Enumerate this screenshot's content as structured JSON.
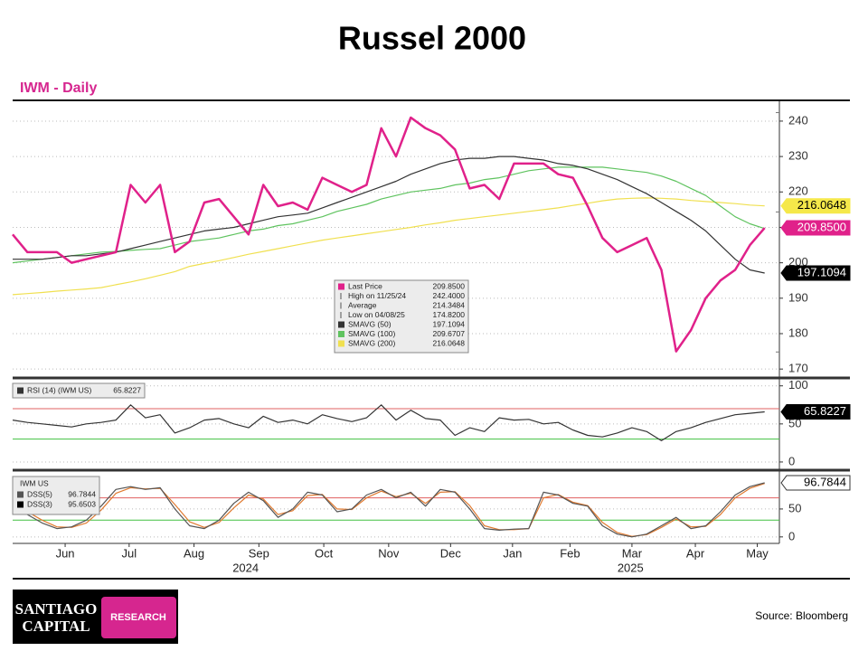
{
  "title": "Russel 2000",
  "subtitle": "IWM - Daily",
  "source": "Source: Bloomberg",
  "logo": {
    "line1": "SANTIAGO",
    "line2": "CAPITAL",
    "tag": "RESEARCH"
  },
  "chart_data": [
    {
      "type": "line",
      "xlim": [
        0,
        52
      ],
      "ylim": [
        168,
        245.6
      ],
      "yticks": [
        170,
        180,
        190,
        200,
        210,
        220,
        230,
        240
      ],
      "grid": true,
      "series": [
        {
          "name": "Last Price",
          "color": "#e0218a",
          "tag_color": "#e0218a",
          "value_label": "209.8500",
          "values": [
            208,
            203,
            203,
            203,
            200,
            201,
            202,
            203,
            222,
            217,
            222,
            203,
            206,
            217,
            218,
            213,
            208,
            222,
            216,
            217,
            215,
            224,
            222,
            220,
            222,
            238,
            230,
            241,
            238,
            236,
            232,
            221,
            222,
            218,
            228,
            228,
            228,
            225,
            224,
            216,
            207,
            203,
            205,
            207,
            198,
            175,
            181,
            190,
            195,
            198,
            205,
            209.85
          ]
        },
        {
          "name": "SMAVG (50)",
          "color": "#333333",
          "tag_color": "#000000",
          "value_label": "197.1094",
          "values": [
            201,
            201,
            201,
            201.5,
            202,
            202,
            202.5,
            203,
            204,
            205,
            206,
            207,
            208,
            209,
            209.5,
            210,
            211,
            212,
            213,
            213.5,
            214,
            215.5,
            217,
            218.5,
            220,
            221.5,
            223,
            225,
            226.5,
            228,
            229,
            229.5,
            229.5,
            230,
            230,
            229.5,
            229,
            228,
            227.5,
            226.5,
            225,
            223.5,
            221.5,
            219.5,
            217,
            214.5,
            212,
            209,
            205,
            201,
            198,
            197.1094
          ]
        },
        {
          "name": "SMAVG (100)",
          "color": "#5fc35f",
          "value_label": "209.6707",
          "values": [
            200,
            200.5,
            201,
            201.5,
            202,
            202.5,
            203,
            203.2,
            203.5,
            203.8,
            204,
            205,
            206,
            206.5,
            207,
            208,
            209,
            209.5,
            210.5,
            211,
            212,
            213,
            214.5,
            215.5,
            216.5,
            218,
            219,
            220,
            220.5,
            221,
            222,
            222.5,
            223.5,
            224,
            225,
            226,
            226.5,
            227,
            227,
            227,
            227,
            226.5,
            226,
            225.5,
            224.5,
            223,
            221,
            219,
            216,
            213,
            211,
            209.6707
          ]
        },
        {
          "name": "SMAVG (200)",
          "color": "#f0e050",
          "tag_color": "#f5e84a",
          "value_label": "216.0648",
          "values": [
            191,
            191.3,
            191.6,
            192,
            192.3,
            192.6,
            193,
            193.8,
            194.6,
            195.5,
            196.5,
            197.5,
            199,
            199.8,
            200.6,
            201.5,
            202.4,
            203.2,
            204,
            204.8,
            205.6,
            206.4,
            207,
            207.6,
            208.2,
            208.8,
            209.4,
            210,
            210.7,
            211.3,
            212,
            212.5,
            213,
            213.5,
            214,
            214.5,
            215,
            215.5,
            216.2,
            216.8,
            217.5,
            218,
            218.2,
            218.3,
            218.2,
            218,
            217.6,
            217.3,
            217,
            216.7,
            216.3,
            216.0648
          ]
        }
      ],
      "stats": [
        {
          "label": "High on 11/25/24",
          "value": 242.4,
          "value_label": "242.4000"
        },
        {
          "label": "Average",
          "value": 214.3484,
          "value_label": "214.3484"
        },
        {
          "label": "Low on 04/08/25",
          "value": 174.82,
          "value_label": "174.8200"
        }
      ]
    },
    {
      "type": "line",
      "xlim": [
        0,
        52
      ],
      "ylim": [
        -6,
        108
      ],
      "yticks": [
        0,
        50,
        100
      ],
      "grid": true,
      "hlines": [
        {
          "value": 70,
          "color": "#e06060"
        },
        {
          "value": 30,
          "color": "#40c040"
        }
      ],
      "series": [
        {
          "name": "RSI (14) (IWM US)",
          "color": "#333333",
          "tag_color": "#000000",
          "value_label": "65.8227",
          "values": [
            55,
            52,
            50,
            48,
            46,
            50,
            52,
            55,
            75,
            58,
            62,
            38,
            45,
            55,
            57,
            50,
            45,
            60,
            52,
            55,
            50,
            62,
            57,
            53,
            58,
            75,
            55,
            68,
            57,
            55,
            35,
            45,
            40,
            58,
            55,
            56,
            50,
            52,
            42,
            35,
            33,
            38,
            45,
            40,
            28,
            40,
            45,
            52,
            57,
            62,
            64,
            65.8227
          ]
        }
      ]
    },
    {
      "type": "line",
      "title": "IWM US",
      "xlim": [
        0,
        52
      ],
      "ylim": [
        -10,
        113
      ],
      "yticks": [
        0,
        50
      ],
      "grid": true,
      "hlines": [
        {
          "value": 70,
          "color": "#e06060"
        },
        {
          "value": 30,
          "color": "#40c040"
        }
      ],
      "xticks": [
        {
          "value": 3.56,
          "label": "Jun"
        },
        {
          "value": 7.9,
          "label": "Jul"
        },
        {
          "value": 12.3,
          "label": "Aug"
        },
        {
          "value": 16.7,
          "label": "Sep"
        },
        {
          "value": 21.1,
          "label": "Oct"
        },
        {
          "value": 25.5,
          "label": "Nov"
        },
        {
          "value": 29.7,
          "label": "Dec"
        },
        {
          "value": 33.9,
          "label": "Jan"
        },
        {
          "value": 37.8,
          "label": "Feb"
        },
        {
          "value": 42.0,
          "label": "Mar"
        },
        {
          "value": 46.3,
          "label": "Apr"
        },
        {
          "value": 50.5,
          "label": "May"
        }
      ],
      "year_ticks": [
        {
          "value": 15.8,
          "label": "2024"
        },
        {
          "value": 41.9,
          "label": "2025"
        }
      ],
      "series": [
        {
          "name": "DSS(5)",
          "color": "#555555",
          "tag_color": "#ffffff",
          "value_label": "96.7844",
          "values": [
            55,
            40,
            25,
            15,
            18,
            30,
            55,
            85,
            90,
            85,
            88,
            50,
            20,
            15,
            30,
            60,
            80,
            65,
            35,
            50,
            80,
            75,
            45,
            50,
            75,
            85,
            70,
            80,
            55,
            85,
            80,
            50,
            15,
            12,
            14,
            15,
            80,
            75,
            60,
            55,
            20,
            5,
            0,
            5,
            20,
            35,
            15,
            20,
            45,
            75,
            90,
            96.7844
          ]
        },
        {
          "name": "DSS(3)",
          "color": "#e07a30",
          "value_label": "95.6503",
          "values": [
            57,
            45,
            30,
            18,
            17,
            25,
            48,
            78,
            88,
            86,
            87,
            58,
            27,
            17,
            26,
            52,
            75,
            68,
            40,
            47,
            74,
            76,
            50,
            49,
            70,
            82,
            72,
            78,
            60,
            80,
            81,
            56,
            20,
            13,
            13,
            15,
            70,
            76,
            62,
            56,
            26,
            8,
            1,
            4,
            17,
            32,
            18,
            19,
            40,
            70,
            87,
            95.6503
          ]
        }
      ]
    }
  ]
}
